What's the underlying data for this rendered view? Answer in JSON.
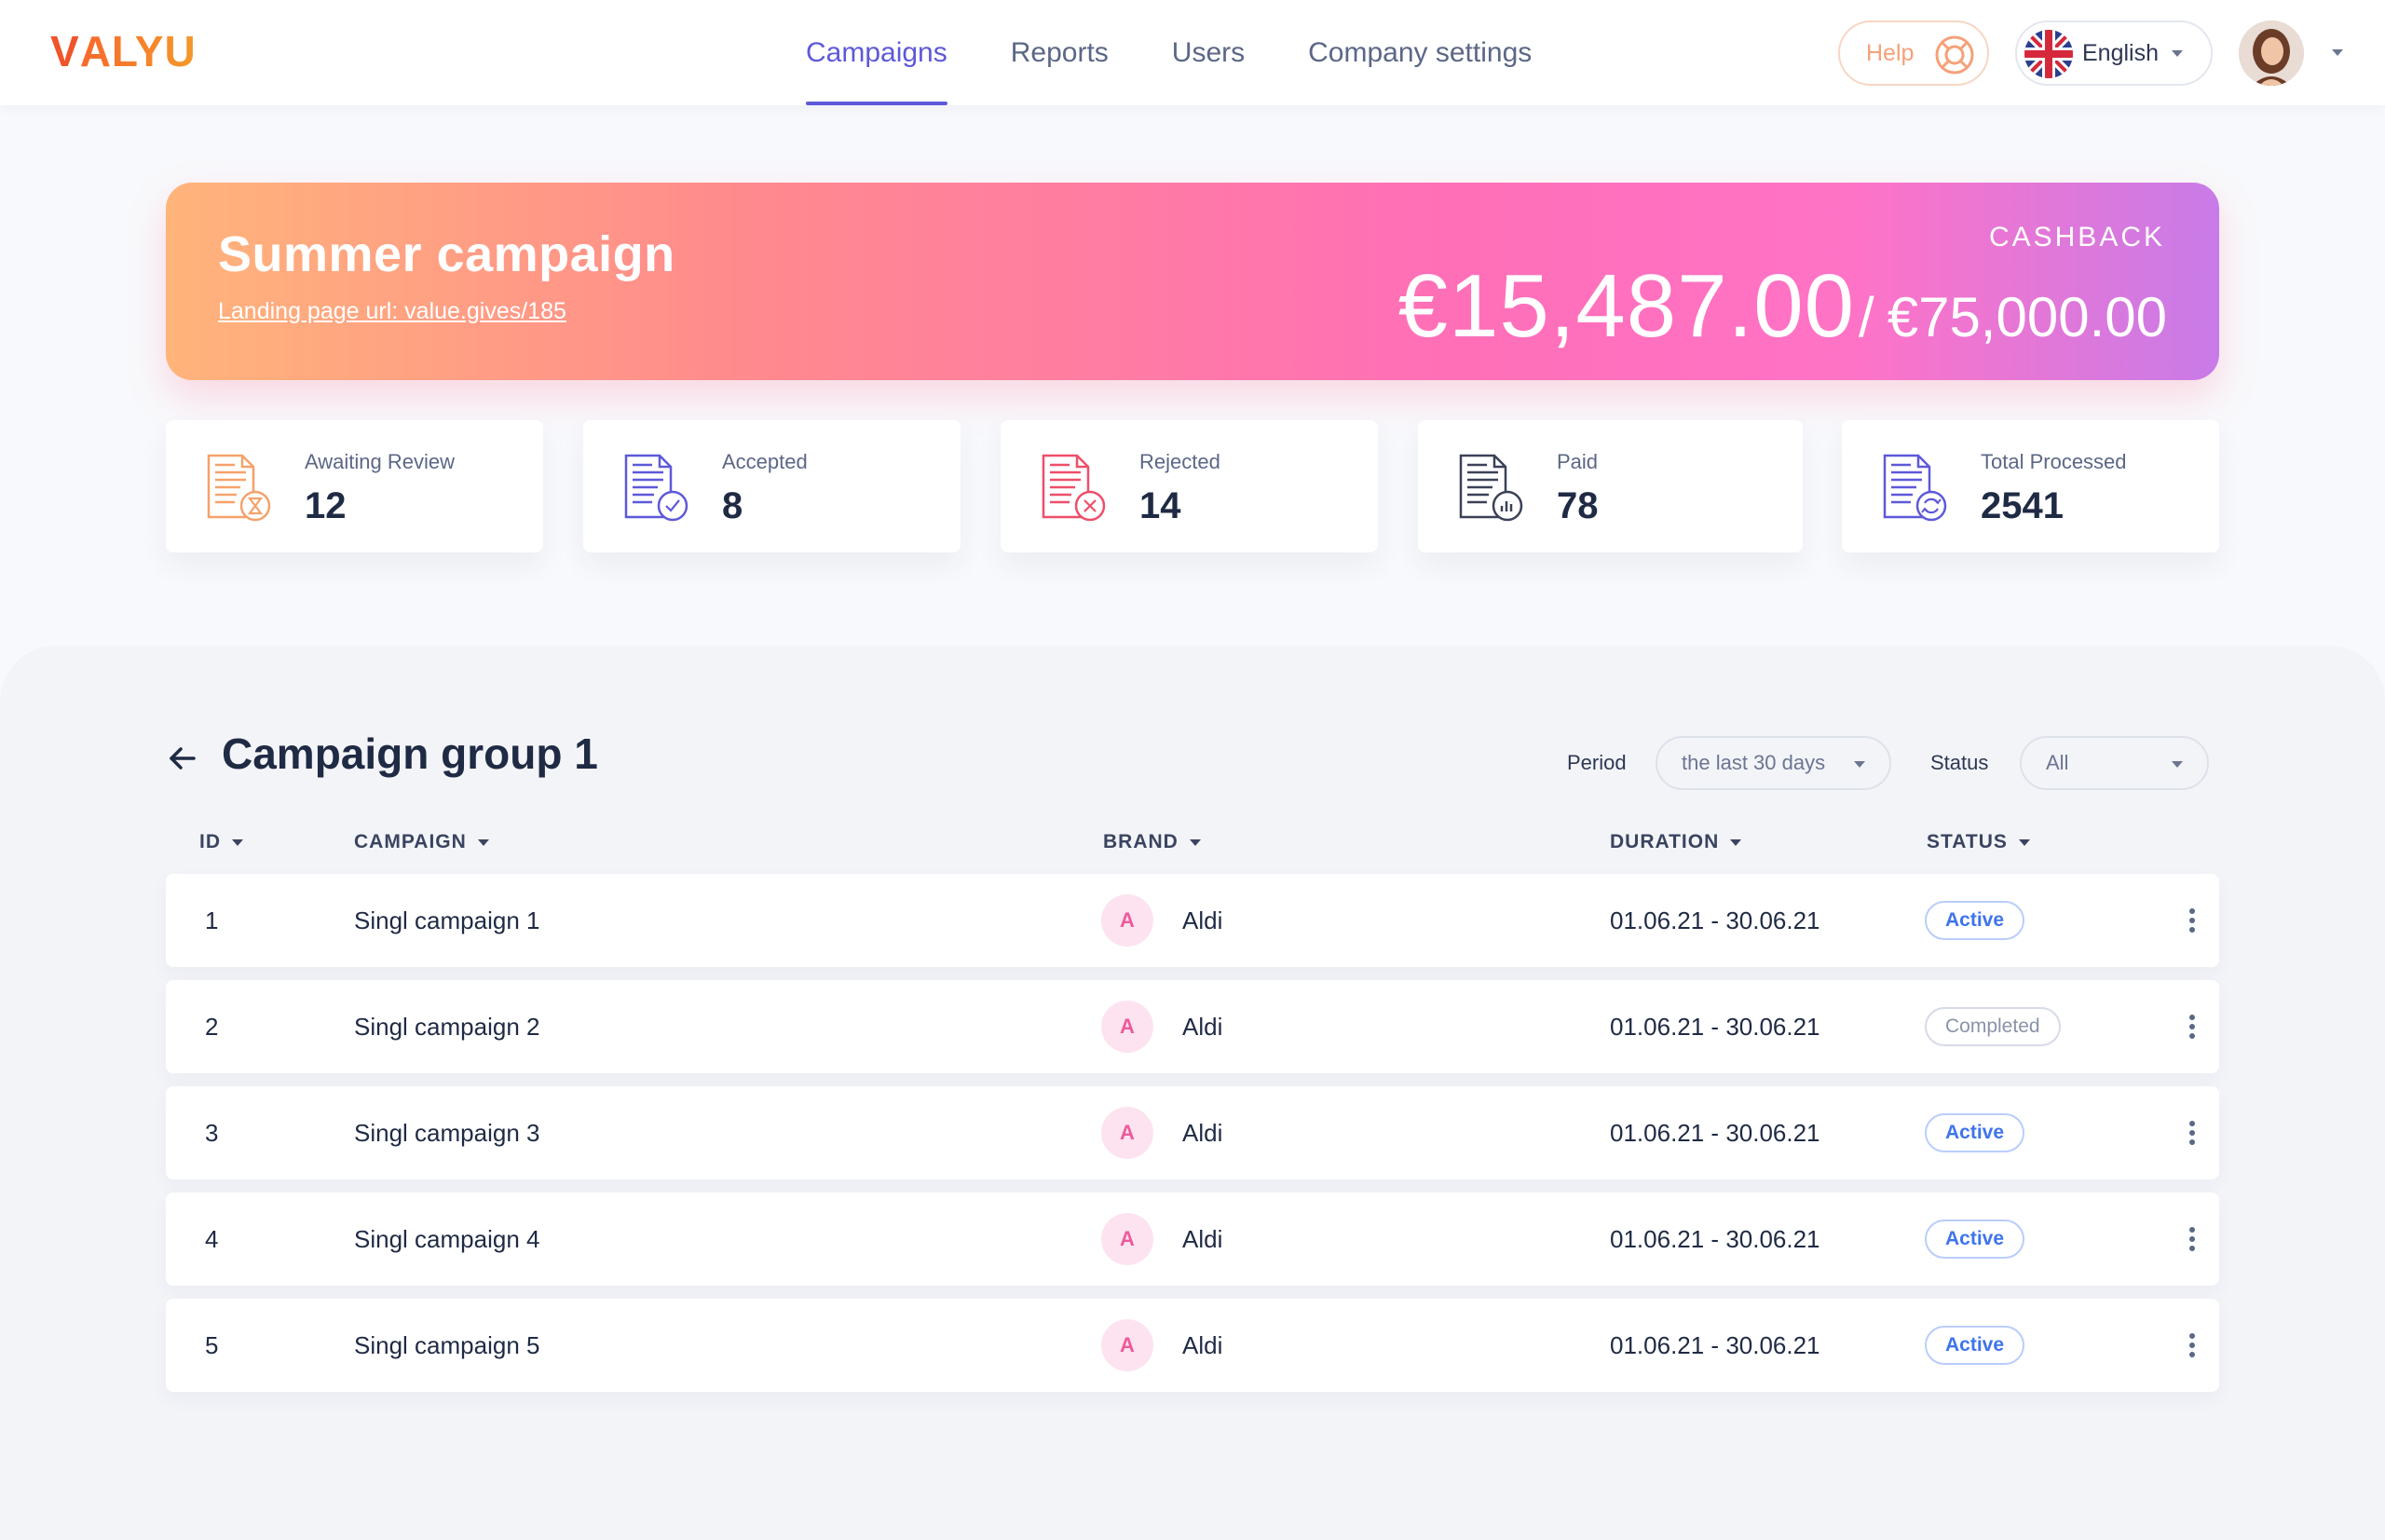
{
  "brand": {
    "logo_v": "V",
    "logo_rest": "ALYU"
  },
  "nav": [
    {
      "label": "Campaigns",
      "active": true
    },
    {
      "label": "Reports",
      "active": false
    },
    {
      "label": "Users",
      "active": false
    },
    {
      "label": "Company settings",
      "active": false
    }
  ],
  "header": {
    "help_label": "Help",
    "language_label": "English",
    "language_flag": "uk-flag-icon"
  },
  "hero": {
    "title": "Summer campaign",
    "url_text": "Landing page url: value.gives/185",
    "label": "CASHBACK",
    "amount": "€15,487.00",
    "separator": "/",
    "budget": "€75,000.00"
  },
  "stats": [
    {
      "label": "Awaiting Review",
      "value": "12",
      "icon": "document-hourglass-icon",
      "color": "#f5a26b"
    },
    {
      "label": "Accepted",
      "value": "8",
      "icon": "document-check-icon",
      "color": "#5e59d9"
    },
    {
      "label": "Rejected",
      "value": "14",
      "icon": "document-reject-icon",
      "color": "#ee4f6a"
    },
    {
      "label": "Paid",
      "value": "78",
      "icon": "document-chart-icon",
      "color": "#3b4157"
    },
    {
      "label": "Total Processed",
      "value": "2541",
      "icon": "document-refresh-icon",
      "color": "#5e59d9"
    }
  ],
  "group": {
    "title": "Campaign group 1"
  },
  "filters": {
    "period_label": "Period",
    "period_value": "the last 30 days",
    "status_label": "Status",
    "status_value": "All"
  },
  "table": {
    "columns": [
      "ID",
      "CAMPAIGN",
      "BRAND",
      "DURATION",
      "STATUS"
    ],
    "rows": [
      {
        "id": "1",
        "campaign": "Singl campaign 1",
        "brand_initial": "A",
        "brand": "Aldi",
        "duration": "01.06.21 - 30.06.21",
        "status": "Active"
      },
      {
        "id": "2",
        "campaign": "Singl campaign 2",
        "brand_initial": "A",
        "brand": "Aldi",
        "duration": "01.06.21 - 30.06.21",
        "status": "Completed"
      },
      {
        "id": "3",
        "campaign": "Singl campaign 3",
        "brand_initial": "A",
        "brand": "Aldi",
        "duration": "01.06.21 - 30.06.21",
        "status": "Active"
      },
      {
        "id": "4",
        "campaign": "Singl campaign 4",
        "brand_initial": "A",
        "brand": "Aldi",
        "duration": "01.06.21 - 30.06.21",
        "status": "Active"
      },
      {
        "id": "5",
        "campaign": "Singl campaign 5",
        "brand_initial": "A",
        "brand": "Aldi",
        "duration": "01.06.21 - 30.06.21",
        "status": "Active"
      }
    ]
  },
  "colors": {
    "accent": "#5e59d9",
    "active_status": "#3f74ec",
    "brand_pink": "#ee5a9c",
    "logo_orange": "#f0542b"
  }
}
